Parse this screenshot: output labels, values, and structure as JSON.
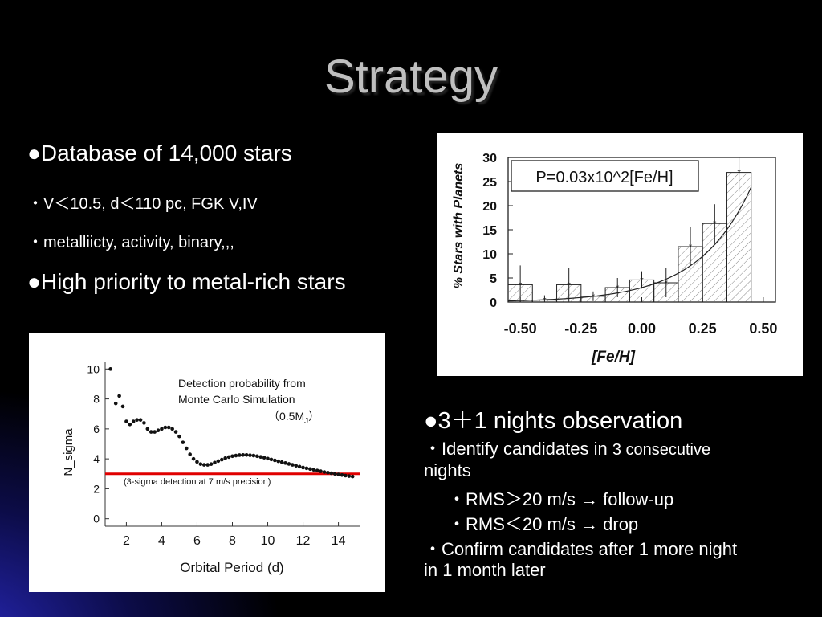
{
  "slide": {
    "title": "Strategy"
  },
  "left_bullets": {
    "bullet1": "●Database of 14,000 stars",
    "sub1": "・V＜10.5, d＜110 pc, FGK V,IV",
    "sub2": "・metalliicty, activity, binary,,,",
    "bullet2": "●High priority to metal-rich stars"
  },
  "right_bullets": {
    "heading": "●3＋1 nights observation",
    "line1_a": "・Identify candidates in ",
    "line1_b": "3 consecutive",
    "line1_c": "nights",
    "line2": "・RMS＞20 m/s → follow-up",
    "line3": "・RMS＜20 m/s → drop",
    "line4": "・Confirm candidates after 1 more night",
    "line5": "in 1 month later"
  },
  "colors": {
    "title": "#bfbfbf",
    "threshold_line": "#e00000",
    "background_glow": "#2828be"
  },
  "chart_data": [
    {
      "type": "bar",
      "title": "",
      "annotation": "P=0.03x10^2[Fe/H]",
      "xlabel": "[Fe/H]",
      "ylabel": "% Stars with Planets",
      "xlim": [
        -0.55,
        0.55
      ],
      "ylim": [
        0,
        30
      ],
      "xticks": [
        "-0.50",
        "-0.25",
        "0.00",
        "0.25",
        "0.50"
      ],
      "yticks": [
        "30",
        "25",
        "20",
        "15",
        "10",
        "5",
        "0"
      ],
      "bin_edges": [
        -0.55,
        -0.45,
        -0.35,
        -0.25,
        -0.15,
        -0.05,
        0.05,
        0.15,
        0.25,
        0.35,
        0.45,
        0.55
      ],
      "values": [
        3.6,
        0.4,
        3.6,
        1.2,
        3.0,
        4.6,
        4.0,
        11.5,
        16.3,
        26.9,
        0
      ],
      "errors": [
        4.0,
        1.0,
        3.5,
        1.0,
        2.0,
        1.8,
        3.0,
        4.0,
        4.0,
        4.0,
        0
      ],
      "fit": "P=0.03x10^2[Fe/H]"
    },
    {
      "type": "scatter",
      "annotation_line1": "Detection probability from",
      "annotation_line2": "Monte Carlo Simulation",
      "annotation_line3": "（0.5M",
      "annotation_sub": "J",
      "annotation_line3_end": "）",
      "threshold_label": "(3-sigma detection at 7 m/s precision)",
      "threshold_value": 3,
      "xlabel": "Orbital Period (d)",
      "ylabel": "N_sigma",
      "xlim": [
        0.8,
        15.2
      ],
      "ylim": [
        -0.5,
        10.5
      ],
      "xticks": [
        "2",
        "4",
        "6",
        "8",
        "10",
        "12",
        "14"
      ],
      "yticks": [
        "10",
        "8",
        "6",
        "4",
        "2",
        "0"
      ],
      "x": [
        1.1,
        1.4,
        1.6,
        1.8,
        2.0,
        2.2,
        2.4,
        2.6,
        2.8,
        3.0,
        3.2,
        3.4,
        3.6,
        3.8,
        4.0,
        4.2,
        4.4,
        4.6,
        4.8,
        5.0,
        5.2,
        5.4,
        5.6,
        5.8,
        6.0,
        6.2,
        6.4,
        6.6,
        6.8,
        7.0,
        7.2,
        7.4,
        7.6,
        7.8,
        8.0,
        8.2,
        8.4,
        8.6,
        8.8,
        9.0,
        9.2,
        9.4,
        9.6,
        9.8,
        10.0,
        10.2,
        10.4,
        10.6,
        10.8,
        11.0,
        11.2,
        11.4,
        11.6,
        11.8,
        12.0,
        12.2,
        12.4,
        12.6,
        12.8,
        13.0,
        13.2,
        13.4,
        13.6,
        13.8,
        14.0,
        14.2,
        14.4,
        14.6,
        14.8
      ],
      "values": [
        10.0,
        7.7,
        8.2,
        7.5,
        6.5,
        6.3,
        6.5,
        6.6,
        6.6,
        6.4,
        6.0,
        5.8,
        5.8,
        5.9,
        6.0,
        6.1,
        6.1,
        6.0,
        5.8,
        5.5,
        5.1,
        4.7,
        4.3,
        4.0,
        3.8,
        3.65,
        3.6,
        3.6,
        3.65,
        3.75,
        3.85,
        3.95,
        4.05,
        4.12,
        4.18,
        4.22,
        4.25,
        4.26,
        4.26,
        4.24,
        4.22,
        4.18,
        4.13,
        4.08,
        4.02,
        3.96,
        3.9,
        3.84,
        3.78,
        3.72,
        3.66,
        3.6,
        3.54,
        3.48,
        3.42,
        3.37,
        3.32,
        3.27,
        3.22,
        3.17,
        3.12,
        3.08,
        3.04,
        3.0,
        2.96,
        2.92,
        2.88,
        2.85,
        2.82
      ]
    }
  ]
}
